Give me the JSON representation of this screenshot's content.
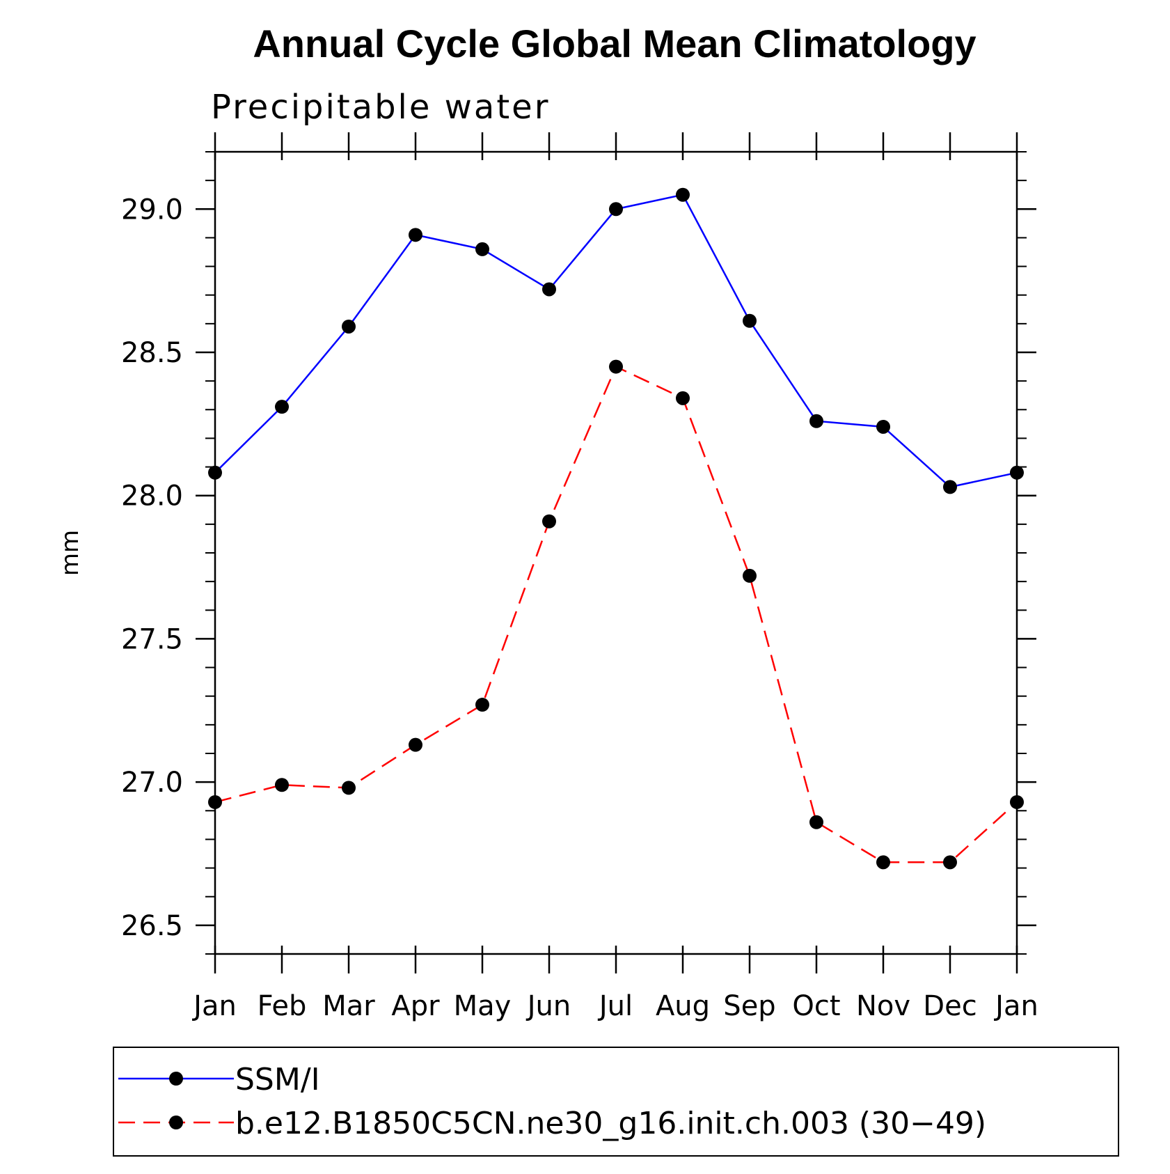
{
  "chart_data": {
    "type": "line",
    "title": "Annual Cycle Global Mean Climatology",
    "subtitle": "Precipitable water",
    "ylabel": "mm",
    "xlabel": "",
    "categories": [
      "Jan",
      "Feb",
      "Mar",
      "Apr",
      "May",
      "Jun",
      "Jul",
      "Aug",
      "Sep",
      "Oct",
      "Nov",
      "Dec",
      "Jan"
    ],
    "ylim": [
      26.4,
      29.2
    ],
    "yticks": [
      {
        "value": 26.5,
        "label": "26.5"
      },
      {
        "value": 27.0,
        "label": "27.0"
      },
      {
        "value": 27.5,
        "label": "27.5"
      },
      {
        "value": 28.0,
        "label": "28.0"
      },
      {
        "value": 28.5,
        "label": "28.5"
      },
      {
        "value": 29.0,
        "label": "29.0"
      }
    ],
    "y_minor_step": 0.1,
    "grid": false,
    "legend_position": "bottom",
    "series": [
      {
        "name": "SSM/I",
        "color": "#0000ff",
        "dash": "solid",
        "marker": "filled-circle",
        "values": [
          28.08,
          28.31,
          28.59,
          28.91,
          28.86,
          28.72,
          29.0,
          29.05,
          28.61,
          28.26,
          28.24,
          28.03,
          28.08
        ]
      },
      {
        "name": "b.e12.B1850C5CN.ne30_g16.init.ch.003 (30−49)",
        "color": "#ff0000",
        "dash": "dashed",
        "marker": "filled-circle",
        "values": [
          26.93,
          26.99,
          26.98,
          27.13,
          27.27,
          27.91,
          28.45,
          28.34,
          27.72,
          26.86,
          26.72,
          26.72,
          26.93
        ]
      }
    ]
  }
}
